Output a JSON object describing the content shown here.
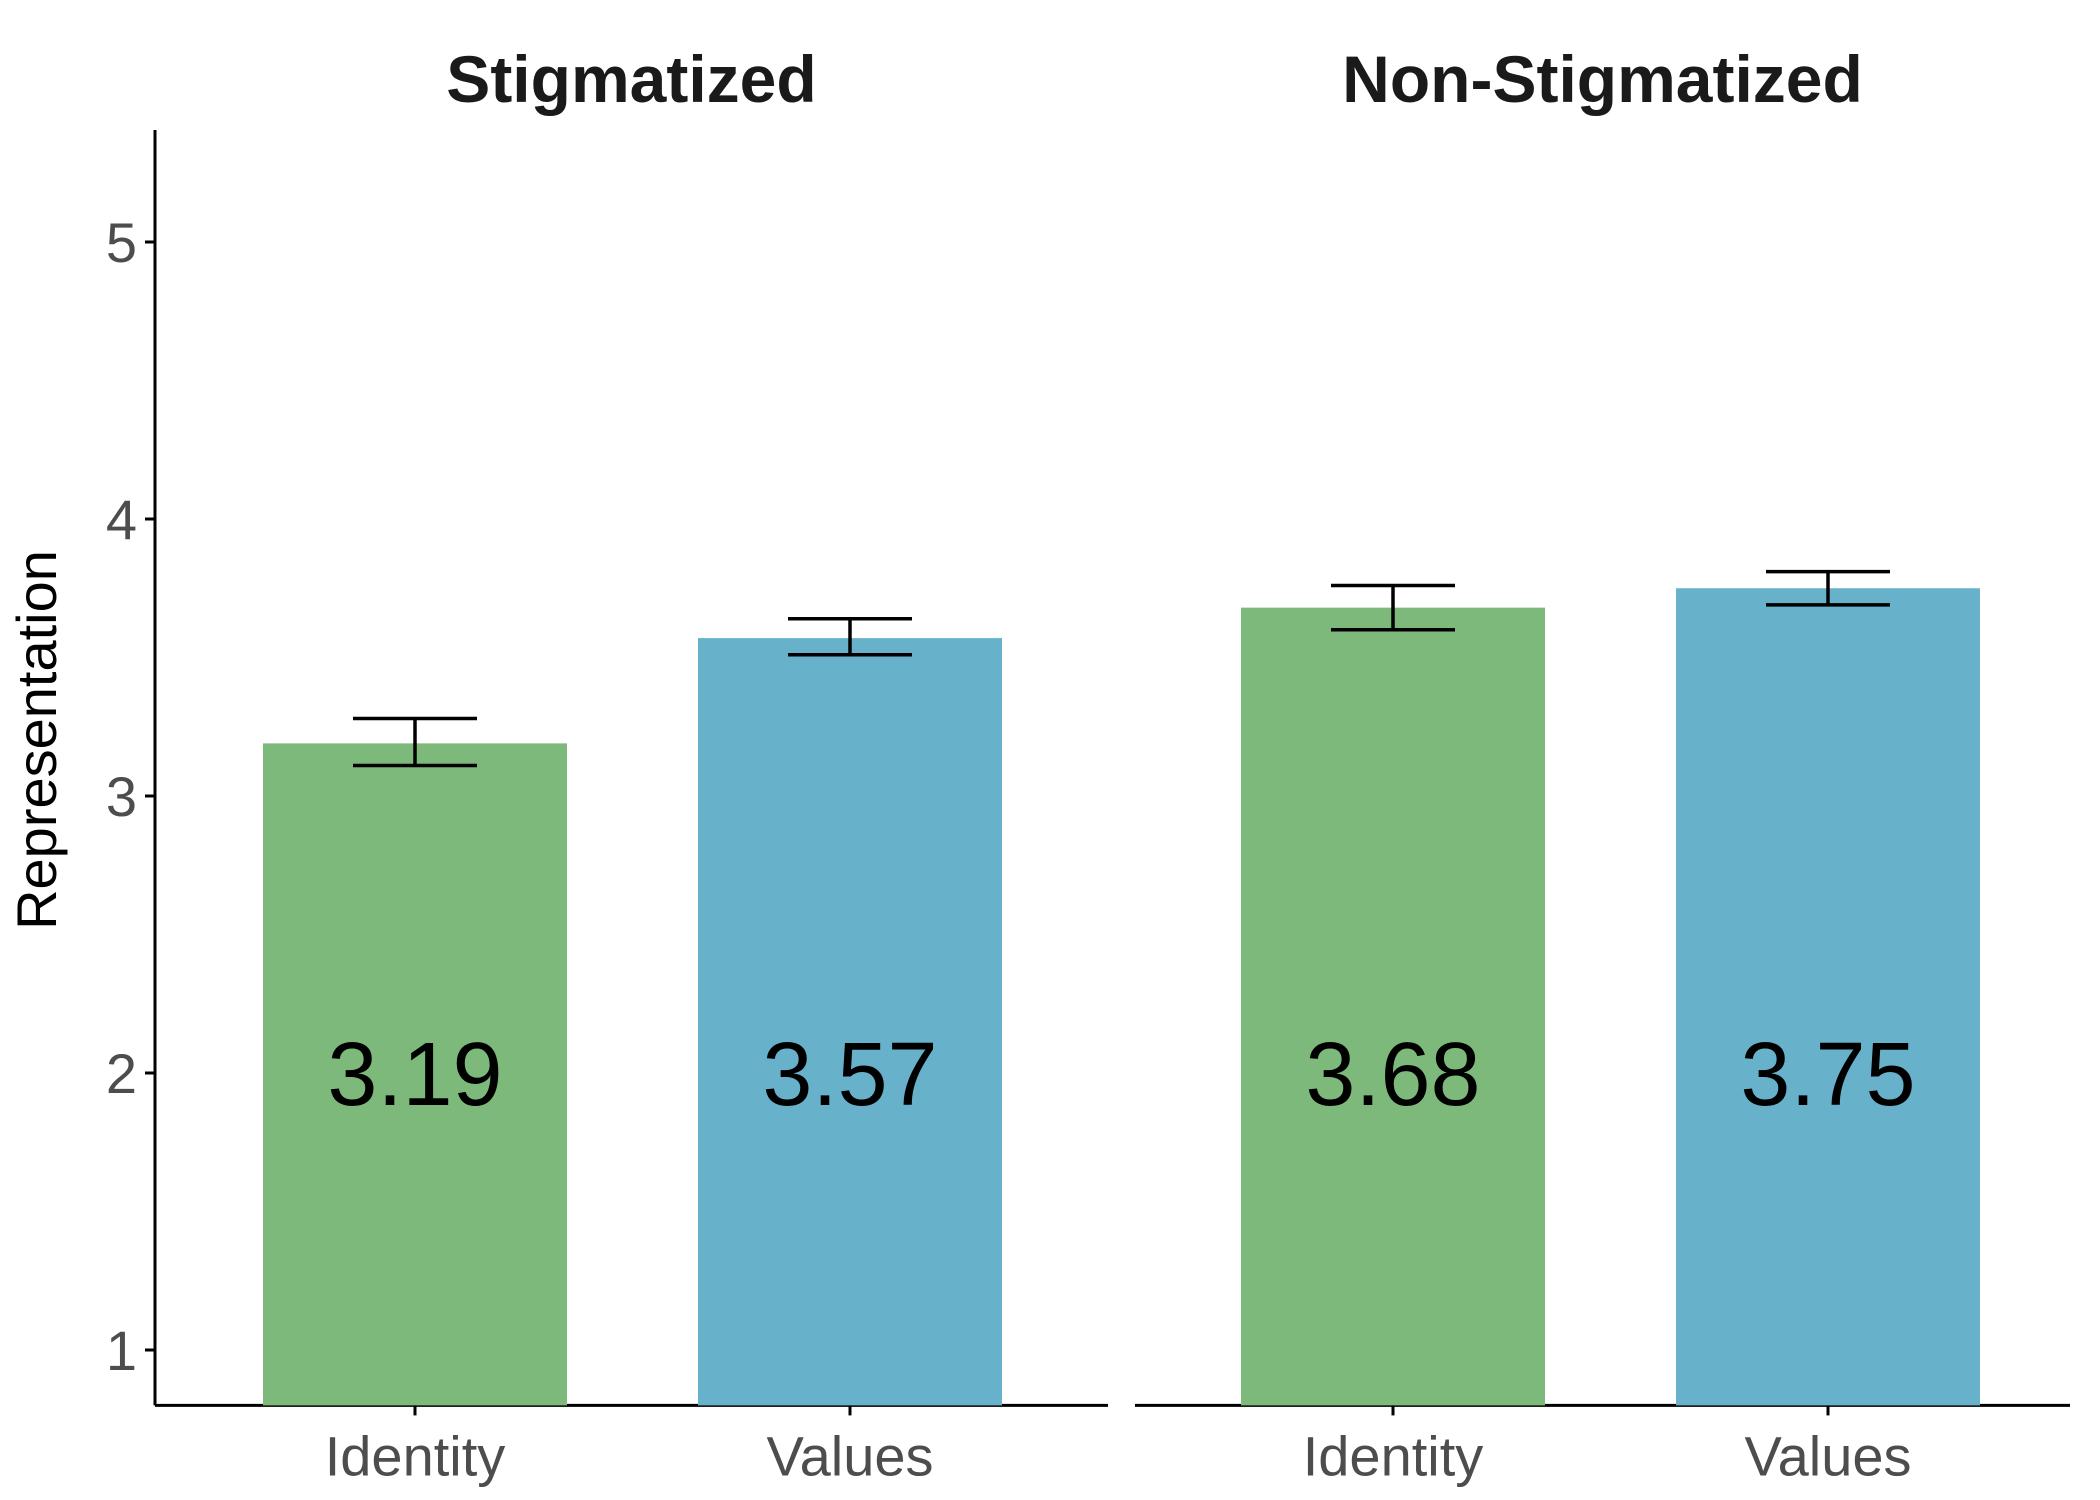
{
  "chart_data": {
    "type": "bar",
    "ylabel": "Representation",
    "ylim": [
      0.8,
      5.2
    ],
    "yticks": [
      1,
      2,
      3,
      4,
      5
    ],
    "grid": false,
    "legend": "none",
    "categories": [
      "Identity",
      "Values"
    ],
    "colors": {
      "Identity": "#7cb97a",
      "Values": "#67b1cb"
    },
    "panels": [
      {
        "title": "Stigmatized",
        "values": [
          3.19,
          3.57
        ],
        "labels": [
          "3.19",
          "3.57"
        ],
        "error_low": [
          3.11,
          3.51
        ],
        "error_high": [
          3.28,
          3.64
        ]
      },
      {
        "title": "Non-Stigmatized",
        "values": [
          3.68,
          3.75
        ],
        "labels": [
          "3.68",
          "3.75"
        ],
        "error_low": [
          3.6,
          3.69
        ],
        "error_high": [
          3.76,
          3.81
        ]
      }
    ]
  }
}
